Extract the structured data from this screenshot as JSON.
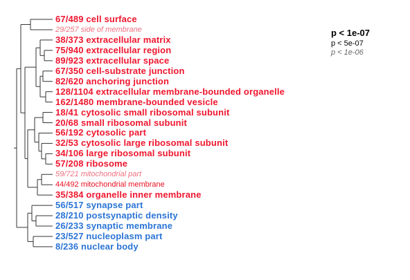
{
  "legend": {
    "strong": "p < 1e-07",
    "medium": "p < 5e-07",
    "weak": "p < 1e-06"
  },
  "colors": {
    "red_strong": "#f0162e",
    "red_weak": "#f07080",
    "red_medium": "#e8101f",
    "blue": "#2a74d6",
    "tree": "#333333"
  },
  "terms": [
    {
      "text": "67/489 cell surface",
      "style": "strong",
      "color": "red"
    },
    {
      "text": "29/257 side of membrane",
      "style": "weak",
      "color": "red"
    },
    {
      "text": "38/373 extracellular matrix",
      "style": "strong",
      "color": "red"
    },
    {
      "text": "75/940 extracellular region",
      "style": "strong",
      "color": "red"
    },
    {
      "text": "89/923 extracellular space",
      "style": "strong",
      "color": "red"
    },
    {
      "text": "67/350 cell-substrate junction",
      "style": "strong",
      "color": "red"
    },
    {
      "text": "82/620 anchoring junction",
      "style": "strong",
      "color": "red"
    },
    {
      "text": "128/1104 extracellular membrane-bounded organelle",
      "style": "strong",
      "color": "red"
    },
    {
      "text": "162/1480 membrane-bounded vesicle",
      "style": "strong",
      "color": "red"
    },
    {
      "text": "18/41 cytosolic small ribosomal subunit",
      "style": "strong",
      "color": "red"
    },
    {
      "text": "20/68 small ribosomal subunit",
      "style": "strong",
      "color": "red"
    },
    {
      "text": "56/192 cytosolic part",
      "style": "strong",
      "color": "red"
    },
    {
      "text": "32/53 cytosolic large ribosomal subunit",
      "style": "strong",
      "color": "red"
    },
    {
      "text": "34/106 large ribosomal subunit",
      "style": "strong",
      "color": "red"
    },
    {
      "text": "57/208 ribosome",
      "style": "strong",
      "color": "red"
    },
    {
      "text": "59/721 mitochondrial part",
      "style": "weak",
      "color": "red"
    },
    {
      "text": "44/492 mitochondrial membrane",
      "style": "medium",
      "color": "red"
    },
    {
      "text": "35/384 organelle inner membrane",
      "style": "strong",
      "color": "red"
    },
    {
      "text": "56/517 synapse part",
      "style": "strong",
      "color": "blue"
    },
    {
      "text": "28/210 postsynaptic density",
      "style": "strong",
      "color": "blue"
    },
    {
      "text": "26/233 synaptic membrane",
      "style": "strong",
      "color": "blue"
    },
    {
      "text": "23/527 nucleoplasm part",
      "style": "strong",
      "color": "blue"
    },
    {
      "text": "8/236 nuclear body",
      "style": "strong",
      "color": "blue"
    }
  ]
}
